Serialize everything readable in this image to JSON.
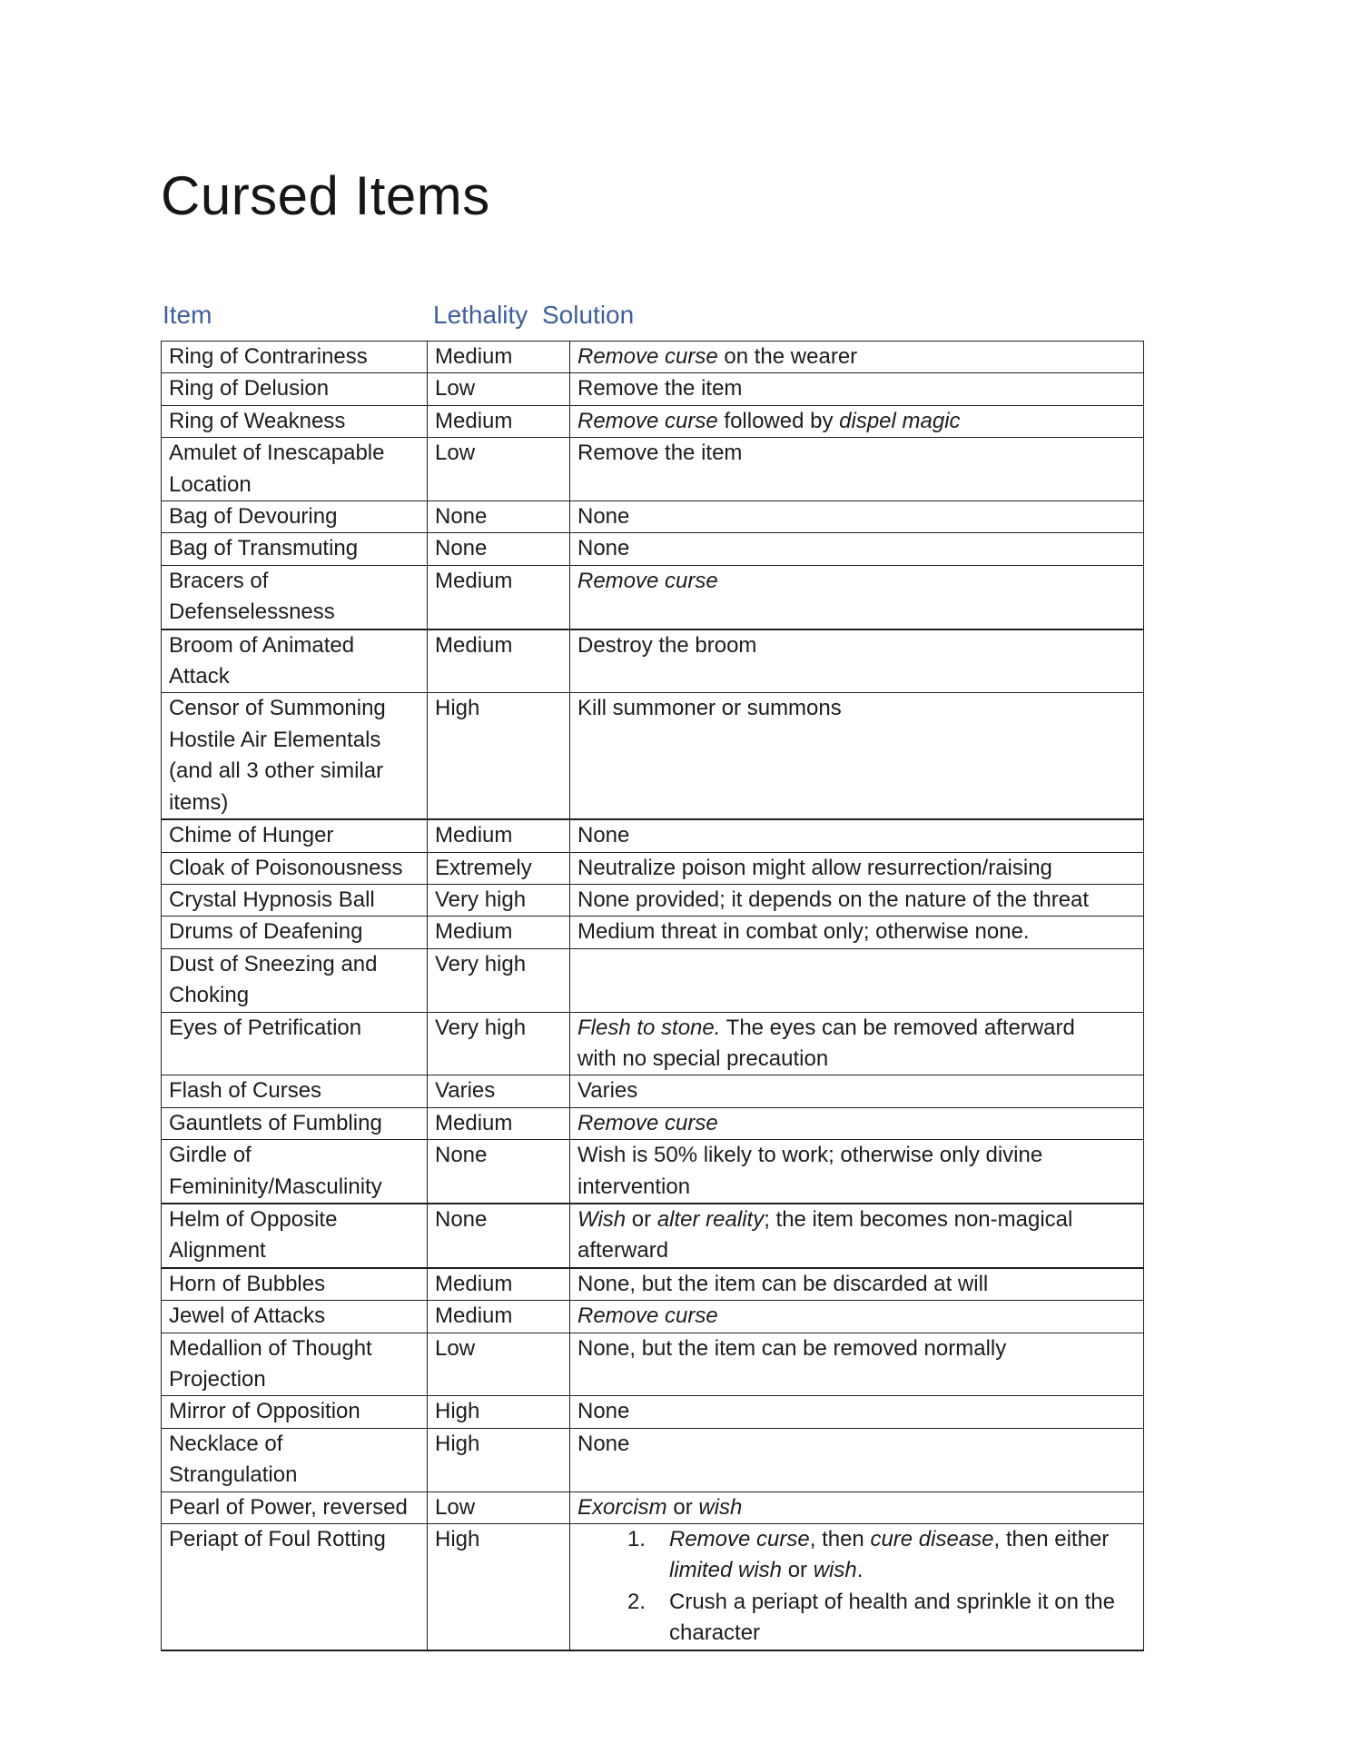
{
  "page": {
    "title": "Cursed Items"
  },
  "colors": {
    "heading_text": "#3f5e9e",
    "body_text": "#1d1d1d",
    "table_border": "#1f1f1f",
    "page_background": "#ffffff"
  },
  "table": {
    "headers": [
      {
        "label": "Item"
      },
      {
        "label": "Lethality"
      },
      {
        "label": "Solution"
      }
    ],
    "rows": [
      {
        "item_lines": [
          "Ring of Contrariness"
        ],
        "lethality": "Medium",
        "solution": [
          {
            "lines": [
              [
                {
                  "t": "Remove curse",
                  "i": true
                },
                {
                  "t": " on the wearer"
                }
              ]
            ]
          }
        ]
      },
      {
        "item_lines": [
          "Ring of Delusion"
        ],
        "lethality": "Low",
        "solution": [
          {
            "lines": [
              [
                {
                  "t": "Remove the item"
                }
              ]
            ]
          }
        ]
      },
      {
        "item_lines": [
          "Ring of Weakness"
        ],
        "lethality": "Medium",
        "solution": [
          {
            "lines": [
              [
                {
                  "t": "Remove curse",
                  "i": true
                },
                {
                  "t": " followed by "
                },
                {
                  "t": "dispel magic",
                  "i": true
                }
              ]
            ]
          }
        ]
      },
      {
        "item_lines": [
          "Amulet of Inescapable",
          "Location"
        ],
        "lethality": "Low",
        "solution": [
          {
            "lines": [
              [
                {
                  "t": "Remove the item"
                }
              ]
            ]
          }
        ]
      },
      {
        "item_lines": [
          "Bag of Devouring"
        ],
        "lethality": "None",
        "solution": [
          {
            "lines": [
              [
                {
                  "t": "None"
                }
              ]
            ]
          }
        ]
      },
      {
        "item_lines": [
          "Bag of Transmuting"
        ],
        "lethality": "None",
        "solution": [
          {
            "lines": [
              [
                {
                  "t": "None"
                }
              ]
            ]
          }
        ]
      },
      {
        "item_lines": [
          "Bracers of",
          "Defenselessness"
        ],
        "lethality": "Medium",
        "thick_bottom": true,
        "solution": [
          {
            "lines": [
              [
                {
                  "t": "Remove curse",
                  "i": true
                }
              ]
            ]
          }
        ]
      },
      {
        "item_lines": [
          "Broom of Animated",
          "Attack"
        ],
        "lethality": "Medium",
        "solution": [
          {
            "lines": [
              [
                {
                  "t": "Destroy the broom"
                }
              ]
            ]
          }
        ]
      },
      {
        "item_lines": [
          "Censor of Summoning",
          "Hostile Air Elementals",
          "(and all 3 other similar",
          "items)"
        ],
        "lethality": "High",
        "thick_bottom": true,
        "solution": [
          {
            "lines": [
              [
                {
                  "t": "Kill summoner or summons"
                }
              ]
            ]
          }
        ]
      },
      {
        "item_lines": [
          "Chime of Hunger"
        ],
        "lethality": "Medium",
        "solution": [
          {
            "lines": [
              [
                {
                  "t": "None"
                }
              ]
            ]
          }
        ]
      },
      {
        "item_lines": [
          "Cloak of Poisonousness"
        ],
        "lethality": "Extremely",
        "solution": [
          {
            "lines": [
              [
                {
                  "t": "Neutralize poison might allow resurrection/raising"
                }
              ]
            ]
          }
        ]
      },
      {
        "item_lines": [
          "Crystal Hypnosis Ball"
        ],
        "lethality": "Very high",
        "solution": [
          {
            "lines": [
              [
                {
                  "t": "None provided; it depends on the nature of the threat"
                }
              ]
            ]
          }
        ]
      },
      {
        "item_lines": [
          "Drums of Deafening"
        ],
        "lethality": "Medium",
        "solution": [
          {
            "lines": [
              [
                {
                  "t": "Medium threat in combat only; otherwise none."
                }
              ]
            ]
          }
        ]
      },
      {
        "item_lines": [
          "Dust of Sneezing and",
          "Choking"
        ],
        "lethality": "Very high",
        "solution": []
      },
      {
        "item_lines": [
          "Eyes of Petrification"
        ],
        "lethality": "Very high",
        "solution": [
          {
            "lines": [
              [
                {
                  "t": "Flesh to stone.",
                  "i": true
                },
                {
                  "t": " The eyes can be removed afterward"
                }
              ],
              [
                {
                  "t": "with no special precaution"
                }
              ]
            ]
          }
        ]
      },
      {
        "item_lines": [
          "Flash of Curses"
        ],
        "lethality": "Varies",
        "solution": [
          {
            "lines": [
              [
                {
                  "t": "Varies"
                }
              ]
            ]
          }
        ]
      },
      {
        "item_lines": [
          "Gauntlets of Fumbling"
        ],
        "lethality": "Medium",
        "solution": [
          {
            "lines": [
              [
                {
                  "t": "Remove curse",
                  "i": true
                }
              ]
            ]
          }
        ]
      },
      {
        "item_lines": [
          "Girdle of",
          "Femininity/Masculinity"
        ],
        "lethality": "None",
        "thick_bottom": true,
        "solution": [
          {
            "lines": [
              [
                {
                  "t": "Wish is 50% likely to work; otherwise only divine"
                }
              ],
              [
                {
                  "t": "intervention"
                }
              ]
            ]
          }
        ]
      },
      {
        "item_lines": [
          "Helm of Opposite",
          "Alignment"
        ],
        "lethality": "None",
        "thick_bottom": true,
        "solution": [
          {
            "lines": [
              [
                {
                  "t": "Wish",
                  "i": true
                },
                {
                  "t": " or "
                },
                {
                  "t": "alter reality",
                  "i": true
                },
                {
                  "t": "; the item becomes non-magical"
                }
              ],
              [
                {
                  "t": "afterward"
                }
              ]
            ]
          }
        ]
      },
      {
        "item_lines": [
          "Horn of Bubbles"
        ],
        "lethality": "Medium",
        "solution": [
          {
            "lines": [
              [
                {
                  "t": "None, but the item can be discarded at will"
                }
              ]
            ]
          }
        ]
      },
      {
        "item_lines": [
          "Jewel of Attacks"
        ],
        "lethality": "Medium",
        "solution": [
          {
            "lines": [
              [
                {
                  "t": "Remove curse",
                  "i": true
                }
              ]
            ]
          }
        ]
      },
      {
        "item_lines": [
          "Medallion of Thought",
          "Projection"
        ],
        "lethality": "Low",
        "solution": [
          {
            "lines": [
              [
                {
                  "t": "None, but the item can be removed normally"
                }
              ]
            ]
          }
        ]
      },
      {
        "item_lines": [
          "Mirror of Opposition"
        ],
        "lethality": "High",
        "solution": [
          {
            "lines": [
              [
                {
                  "t": "None"
                }
              ]
            ]
          }
        ]
      },
      {
        "item_lines": [
          "Necklace of",
          "Strangulation"
        ],
        "lethality": "High",
        "solution": [
          {
            "lines": [
              [
                {
                  "t": "None"
                }
              ]
            ]
          }
        ]
      },
      {
        "item_lines": [
          "Pearl of Power, reversed"
        ],
        "lethality": "Low",
        "solution": [
          {
            "lines": [
              [
                {
                  "t": "Exorcism",
                  "i": true
                },
                {
                  "t": " or "
                },
                {
                  "t": "wish",
                  "i": true
                }
              ]
            ]
          }
        ]
      },
      {
        "item_lines": [
          "Periapt of Foul Rotting"
        ],
        "lethality": "High",
        "solution": [
          {
            "num": "1.",
            "lines": [
              [
                {
                  "t": "Remove curse",
                  "i": true
                },
                {
                  "t": ", then "
                },
                {
                  "t": "cure disease",
                  "i": true
                },
                {
                  "t": ", then either "
                }
              ],
              [
                {
                  "t": "limited wish",
                  "i": true
                },
                {
                  "t": " or "
                },
                {
                  "t": "wish",
                  "i": true
                },
                {
                  "t": "."
                }
              ]
            ]
          },
          {
            "num": "2.",
            "lines": [
              [
                {
                  "t": "Crush a periapt of health and sprinkle it on the"
                }
              ],
              [
                {
                  "t": "character"
                }
              ]
            ]
          }
        ]
      }
    ]
  }
}
